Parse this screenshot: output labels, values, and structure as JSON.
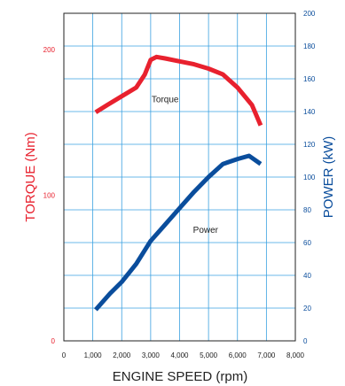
{
  "chart_data": {
    "type": "line",
    "xlabel": "ENGINE SPEED (rpm)",
    "ylabel_left": "TORQUE (Nm)",
    "ylabel_right": "POWER (kW)",
    "xlim": [
      0,
      8000
    ],
    "ylim_left": [
      0,
      225
    ],
    "ylim_right": [
      0,
      200
    ],
    "grid": true,
    "x_ticks": [
      "0",
      "1,000",
      "2,000",
      "3,000",
      "4,000",
      "5,000",
      "6,000",
      "7,000",
      "8,000"
    ],
    "y_left_ticks": [
      "0",
      "100",
      "200"
    ],
    "y_right_ticks": [
      "0",
      "20",
      "40",
      "60",
      "80",
      "100",
      "120",
      "140",
      "160",
      "180",
      "200"
    ],
    "series": [
      {
        "name": "Torque",
        "axis": "left",
        "color": "#e8212e",
        "points": [
          [
            1100,
            157
          ],
          [
            1500,
            162
          ],
          [
            2000,
            168
          ],
          [
            2500,
            174
          ],
          [
            2800,
            183
          ],
          [
            3000,
            193
          ],
          [
            3200,
            195
          ],
          [
            3500,
            194
          ],
          [
            4000,
            192
          ],
          [
            4500,
            190
          ],
          [
            5000,
            187
          ],
          [
            5500,
            183
          ],
          [
            6000,
            174
          ],
          [
            6500,
            162
          ],
          [
            6800,
            148
          ]
        ]
      },
      {
        "name": "Power",
        "axis": "right",
        "color": "#0a4d9c",
        "points": [
          [
            1100,
            19
          ],
          [
            1600,
            29
          ],
          [
            2000,
            36
          ],
          [
            2500,
            47
          ],
          [
            3000,
            61
          ],
          [
            3500,
            71
          ],
          [
            4000,
            81
          ],
          [
            4500,
            91
          ],
          [
            5000,
            100
          ],
          [
            5500,
            108
          ],
          [
            6000,
            111
          ],
          [
            6400,
            113
          ],
          [
            6800,
            108
          ]
        ]
      }
    ]
  }
}
